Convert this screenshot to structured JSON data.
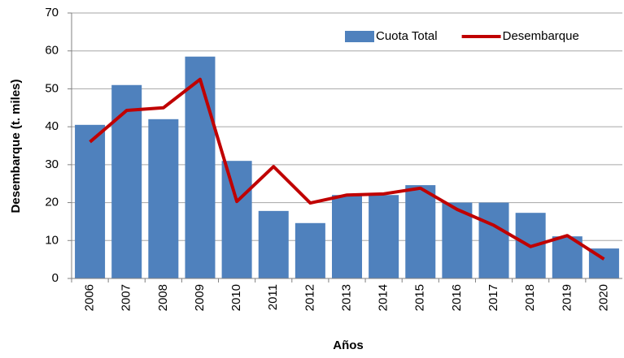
{
  "chart_data": {
    "type": "bar",
    "x_label": "Años",
    "y_label": "Desembarque  (t. miles)",
    "categories": [
      "2006",
      "2007",
      "2008",
      "2009",
      "2010",
      "2011",
      "2012",
      "2013",
      "2014",
      "2015",
      "2016",
      "2017",
      "2018",
      "2019",
      "2020"
    ],
    "series": [
      {
        "name": "Cuota Total",
        "type": "bar",
        "color": "#4f81bd",
        "values": [
          40.5,
          51,
          42,
          58.5,
          31,
          17.8,
          14.6,
          22,
          22,
          24.6,
          20,
          20,
          17.3,
          11.1,
          7.9
        ]
      },
      {
        "name": "Desembarque",
        "type": "line",
        "color": "#c00000",
        "values": [
          36,
          44.3,
          45,
          52.5,
          20.3,
          29.5,
          19.9,
          22,
          22.3,
          23.8,
          18.2,
          14,
          8.4,
          11.3,
          5.1
        ]
      }
    ],
    "ylim": [
      0,
      70
    ],
    "yticks": [
      0,
      10,
      20,
      30,
      40,
      50,
      60,
      70
    ],
    "grid": true,
    "legend": "top-right"
  }
}
